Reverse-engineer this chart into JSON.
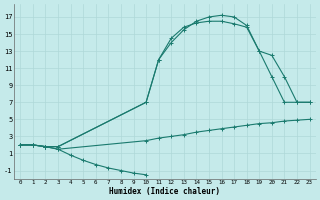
{
  "xlabel": "Humidex (Indice chaleur)",
  "xlim": [
    -0.5,
    23.5
  ],
  "ylim": [
    -2.0,
    18.5
  ],
  "xticks": [
    0,
    1,
    2,
    3,
    4,
    5,
    6,
    7,
    8,
    9,
    10,
    11,
    12,
    13,
    14,
    15,
    16,
    17,
    18,
    19,
    20,
    21,
    22,
    23
  ],
  "yticks": [
    -1,
    1,
    3,
    5,
    7,
    9,
    11,
    13,
    15,
    17
  ],
  "bg_color": "#c5eaea",
  "line_color": "#1a7a6e",
  "grid_color": "#afd8d8",
  "line1_x": [
    0,
    1,
    2,
    3,
    4,
    5,
    6,
    7,
    8,
    9,
    10
  ],
  "line1_y": [
    2,
    2,
    1.8,
    1.5,
    0.8,
    0.2,
    -0.3,
    -0.7,
    -1.0,
    -1.3,
    -1.5
  ],
  "line2_x": [
    0,
    1,
    2,
    3,
    10,
    11,
    12,
    13,
    14,
    15,
    16,
    17,
    18,
    19,
    20,
    21,
    22,
    23
  ],
  "line2_y": [
    2,
    2,
    1.8,
    1.5,
    2.5,
    2.8,
    3.0,
    3.2,
    3.5,
    3.7,
    3.9,
    4.1,
    4.3,
    4.5,
    4.6,
    4.8,
    4.9,
    5.0
  ],
  "line3_x": [
    0,
    1,
    2,
    3,
    10,
    11,
    12,
    13,
    14,
    15,
    16,
    17,
    18,
    19,
    20,
    21,
    22,
    23
  ],
  "line3_y": [
    2,
    2,
    1.8,
    1.8,
    7.0,
    12.0,
    14.0,
    15.5,
    16.5,
    17.0,
    17.2,
    17.0,
    16.0,
    13.0,
    10.0,
    7.0,
    7.0,
    7.0
  ],
  "line4_x": [
    0,
    1,
    2,
    3,
    10,
    11,
    12,
    13,
    14,
    15,
    16,
    17,
    18,
    19,
    20,
    21,
    22,
    23
  ],
  "line4_y": [
    2,
    2,
    1.8,
    1.8,
    7.0,
    12.0,
    14.5,
    15.8,
    16.3,
    16.5,
    16.5,
    16.2,
    15.8,
    13.0,
    12.5,
    10.0,
    7.0,
    7.0
  ]
}
